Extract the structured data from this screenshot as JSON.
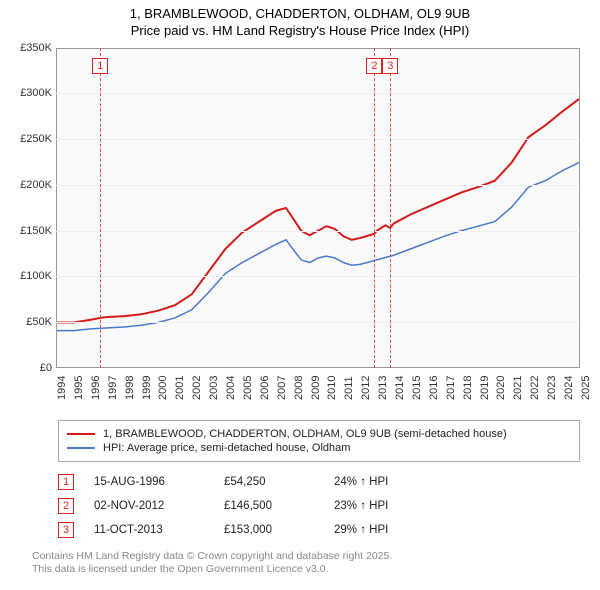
{
  "title": {
    "line1": "1, BRAMBLEWOOD, CHADDERTON, OLDHAM, OL9 9UB",
    "line2": "Price paid vs. HM Land Registry's House Price Index (HPI)"
  },
  "chart": {
    "type": "line",
    "background": "#fafafa",
    "grid_color": "#eeeeee",
    "border_color": "#999999",
    "x": {
      "min": 1994,
      "max": 2025,
      "ticks": [
        1994,
        1995,
        1996,
        1997,
        1998,
        1999,
        2000,
        2001,
        2002,
        2003,
        2004,
        2005,
        2006,
        2007,
        2008,
        2009,
        2010,
        2011,
        2012,
        2013,
        2014,
        2015,
        2016,
        2017,
        2018,
        2019,
        2020,
        2021,
        2022,
        2023,
        2024,
        2025
      ],
      "fontsize": 11
    },
    "y": {
      "min": 0,
      "max": 350000,
      "step": 50000,
      "labels": [
        "£0",
        "£50K",
        "£100K",
        "£150K",
        "£200K",
        "£250K",
        "£300K",
        "£350K"
      ],
      "fontsize": 11
    },
    "markers": [
      {
        "num": "1",
        "x": 1996.62
      },
      {
        "num": "2",
        "x": 2012.84
      },
      {
        "num": "3",
        "x": 2013.78
      }
    ],
    "series": [
      {
        "name": "property",
        "label": "1, BRAMBLEWOOD, CHADDERTON, OLDHAM, OL9 9UB (semi-detached house)",
        "color": "#d11c1c",
        "width": 2,
        "points": [
          [
            1994.0,
            49000
          ],
          [
            1995.0,
            49000
          ],
          [
            1996.0,
            52000
          ],
          [
            1996.62,
            54250
          ],
          [
            1997.0,
            55000
          ],
          [
            1998.0,
            56000
          ],
          [
            1999.0,
            58000
          ],
          [
            2000.0,
            62000
          ],
          [
            2001.0,
            68000
          ],
          [
            2002.0,
            80000
          ],
          [
            2003.0,
            105000
          ],
          [
            2004.0,
            130000
          ],
          [
            2005.0,
            148000
          ],
          [
            2006.0,
            160000
          ],
          [
            2007.0,
            172000
          ],
          [
            2007.6,
            175000
          ],
          [
            2008.0,
            164000
          ],
          [
            2008.5,
            150000
          ],
          [
            2009.0,
            145000
          ],
          [
            2009.5,
            150000
          ],
          [
            2010.0,
            155000
          ],
          [
            2010.5,
            152000
          ],
          [
            2011.0,
            144000
          ],
          [
            2011.5,
            140000
          ],
          [
            2012.0,
            142000
          ],
          [
            2012.84,
            146500
          ],
          [
            2013.0,
            150000
          ],
          [
            2013.5,
            156000
          ],
          [
            2013.78,
            153000
          ],
          [
            2014.0,
            158000
          ],
          [
            2015.0,
            168000
          ],
          [
            2016.0,
            176000
          ],
          [
            2017.0,
            184000
          ],
          [
            2018.0,
            192000
          ],
          [
            2019.0,
            198000
          ],
          [
            2020.0,
            205000
          ],
          [
            2021.0,
            225000
          ],
          [
            2022.0,
            253000
          ],
          [
            2023.0,
            266000
          ],
          [
            2024.0,
            281000
          ],
          [
            2025.0,
            295000
          ]
        ]
      },
      {
        "name": "hpi",
        "label": "HPI: Average price, semi-detached house, Oldham",
        "color": "#4a78c8",
        "width": 1.5,
        "points": [
          [
            1994.0,
            40000
          ],
          [
            1995.0,
            40000
          ],
          [
            1996.0,
            42000
          ],
          [
            1997.0,
            43000
          ],
          [
            1998.0,
            44000
          ],
          [
            1999.0,
            46000
          ],
          [
            2000.0,
            49000
          ],
          [
            2001.0,
            54000
          ],
          [
            2002.0,
            63000
          ],
          [
            2003.0,
            82000
          ],
          [
            2004.0,
            103000
          ],
          [
            2005.0,
            115000
          ],
          [
            2006.0,
            125000
          ],
          [
            2007.0,
            135000
          ],
          [
            2007.6,
            140000
          ],
          [
            2008.0,
            130000
          ],
          [
            2008.5,
            118000
          ],
          [
            2009.0,
            115000
          ],
          [
            2009.5,
            120000
          ],
          [
            2010.0,
            122000
          ],
          [
            2010.5,
            120000
          ],
          [
            2011.0,
            115000
          ],
          [
            2011.5,
            112000
          ],
          [
            2012.0,
            113000
          ],
          [
            2013.0,
            118000
          ],
          [
            2014.0,
            123000
          ],
          [
            2015.0,
            130000
          ],
          [
            2016.0,
            137000
          ],
          [
            2017.0,
            144000
          ],
          [
            2018.0,
            150000
          ],
          [
            2019.0,
            155000
          ],
          [
            2020.0,
            160000
          ],
          [
            2021.0,
            176000
          ],
          [
            2022.0,
            198000
          ],
          [
            2023.0,
            205000
          ],
          [
            2024.0,
            216000
          ],
          [
            2025.0,
            225000
          ]
        ]
      }
    ]
  },
  "legend": {
    "rows": [
      {
        "color": "#d11c1c",
        "label": "1, BRAMBLEWOOD, CHADDERTON, OLDHAM, OL9 9UB (semi-detached house)"
      },
      {
        "color": "#4a78c8",
        "label": "HPI: Average price, semi-detached house, Oldham"
      }
    ]
  },
  "sales": [
    {
      "num": "1",
      "date": "15-AUG-1996",
      "price": "£54,250",
      "change": "24% ↑ HPI"
    },
    {
      "num": "2",
      "date": "02-NOV-2012",
      "price": "£146,500",
      "change": "23% ↑ HPI"
    },
    {
      "num": "3",
      "date": "11-OCT-2013",
      "price": "£153,000",
      "change": "29% ↑ HPI"
    }
  ],
  "footer": {
    "line1": "Contains HM Land Registry data © Crown copyright and database right 2025.",
    "line2": "This data is licensed under the Open Government Licence v3.0."
  }
}
